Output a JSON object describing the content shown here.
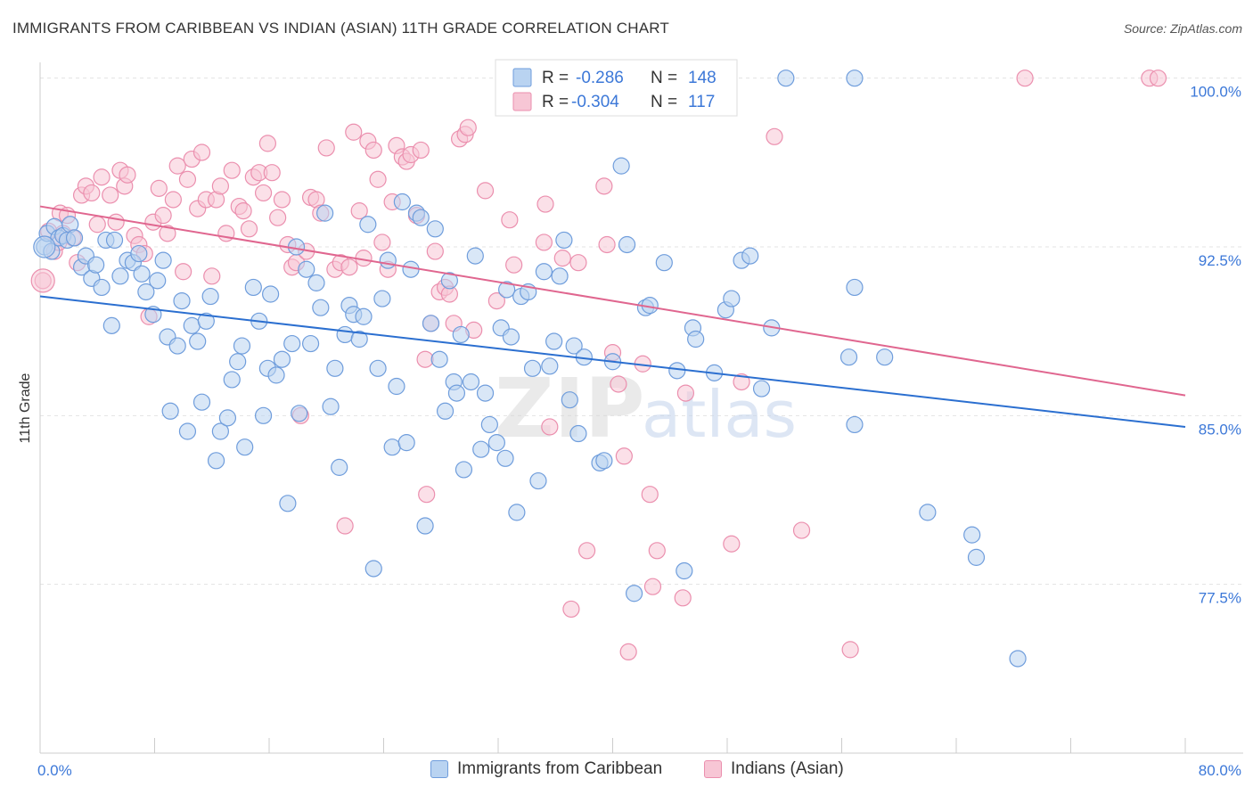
{
  "header": {
    "title": "IMMIGRANTS FROM CARIBBEAN VS INDIAN (ASIAN) 11TH GRADE CORRELATION CHART",
    "source": "Source: ZipAtlas.com"
  },
  "watermark": {
    "zip": "ZIP",
    "atlas": "atlas"
  },
  "colors": {
    "blue_fill": "#b9d3f1",
    "blue_stroke": "#6f9ddc",
    "blue_line": "#2b6fd0",
    "pink_fill": "#f7c6d5",
    "pink_stroke": "#eb8fae",
    "pink_line": "#e0668f",
    "axis_text": "#3c78d8",
    "grid": "#e3e3e3"
  },
  "stats_legend": [
    {
      "r_label": "R = ",
      "r_value": "-0.286",
      "n_label": "N = ",
      "n_value": "148"
    },
    {
      "r_label": "R = ",
      "r_value": "-0.304",
      "n_label": "N = ",
      "n_value": "117"
    }
  ],
  "chart_data": {
    "type": "scatter",
    "title": "IMMIGRANTS FROM CARIBBEAN VS INDIAN (ASIAN) 11TH GRADE CORRELATION CHART",
    "xlabel": "",
    "ylabel": "11th Grade",
    "xlim": [
      0,
      80
    ],
    "ylim": [
      70,
      100.7
    ],
    "x_tick_labels": [
      "0.0%",
      "80.0%"
    ],
    "y_ticks": [
      77.5,
      85.0,
      92.5,
      100.0
    ],
    "y_tick_labels": [
      "77.5%",
      "85.0%",
      "92.5%",
      "100.0%"
    ],
    "grid": true,
    "legend_position": "top-center",
    "series": [
      {
        "name": "Immigrants from Caribbean",
        "color": "#6f9ddc",
        "r": -0.286,
        "n": 148,
        "trend": {
          "x": [
            0,
            80
          ],
          "y": [
            90.3,
            84.5
          ]
        },
        "points": [
          [
            0.3,
            92.5
          ],
          [
            0.5,
            93.1
          ],
          [
            0.8,
            92.3
          ],
          [
            1.0,
            93.4
          ],
          [
            1.3,
            92.9
          ],
          [
            1.6,
            93.0
          ],
          [
            1.9,
            92.8
          ],
          [
            2.1,
            93.5
          ],
          [
            2.4,
            92.9
          ],
          [
            2.9,
            91.6
          ],
          [
            3.2,
            92.1
          ],
          [
            3.6,
            91.1
          ],
          [
            3.9,
            91.7
          ],
          [
            4.3,
            90.7
          ],
          [
            4.6,
            92.8
          ],
          [
            5.0,
            89.0
          ],
          [
            5.2,
            92.8
          ],
          [
            5.6,
            91.2
          ],
          [
            6.1,
            91.9
          ],
          [
            6.5,
            91.8
          ],
          [
            6.9,
            92.2
          ],
          [
            7.1,
            91.3
          ],
          [
            7.4,
            90.5
          ],
          [
            7.9,
            89.5
          ],
          [
            8.2,
            91.0
          ],
          [
            8.6,
            91.9
          ],
          [
            8.9,
            88.5
          ],
          [
            9.1,
            85.2
          ],
          [
            9.6,
            88.1
          ],
          [
            9.9,
            90.1
          ],
          [
            10.3,
            84.3
          ],
          [
            10.6,
            89.0
          ],
          [
            11.0,
            88.3
          ],
          [
            11.3,
            85.6
          ],
          [
            11.6,
            89.2
          ],
          [
            11.9,
            90.3
          ],
          [
            12.3,
            83.0
          ],
          [
            12.6,
            84.3
          ],
          [
            13.1,
            84.9
          ],
          [
            13.4,
            86.6
          ],
          [
            13.8,
            87.4
          ],
          [
            14.1,
            88.1
          ],
          [
            14.3,
            83.6
          ],
          [
            14.9,
            90.7
          ],
          [
            15.3,
            89.2
          ],
          [
            15.6,
            85.0
          ],
          [
            15.9,
            87.1
          ],
          [
            16.1,
            90.4
          ],
          [
            16.5,
            86.8
          ],
          [
            16.9,
            87.5
          ],
          [
            17.3,
            81.1
          ],
          [
            17.6,
            88.2
          ],
          [
            17.9,
            92.5
          ],
          [
            18.1,
            85.1
          ],
          [
            18.6,
            91.5
          ],
          [
            18.9,
            88.2
          ],
          [
            19.3,
            90.9
          ],
          [
            19.6,
            89.8
          ],
          [
            19.9,
            94.0
          ],
          [
            20.3,
            85.4
          ],
          [
            20.6,
            87.1
          ],
          [
            20.9,
            82.7
          ],
          [
            21.3,
            88.6
          ],
          [
            21.6,
            89.9
          ],
          [
            21.9,
            89.5
          ],
          [
            22.3,
            88.4
          ],
          [
            22.6,
            89.4
          ],
          [
            22.9,
            93.5
          ],
          [
            23.3,
            78.2
          ],
          [
            23.6,
            87.1
          ],
          [
            23.9,
            90.2
          ],
          [
            24.3,
            91.9
          ],
          [
            24.6,
            83.6
          ],
          [
            24.9,
            86.3
          ],
          [
            25.3,
            94.5
          ],
          [
            25.6,
            83.8
          ],
          [
            25.9,
            91.5
          ],
          [
            26.3,
            94.0
          ],
          [
            26.6,
            93.8
          ],
          [
            26.9,
            80.1
          ],
          [
            27.3,
            89.1
          ],
          [
            27.6,
            93.3
          ],
          [
            27.9,
            87.5
          ],
          [
            28.3,
            85.2
          ],
          [
            28.6,
            91.0
          ],
          [
            28.9,
            86.5
          ],
          [
            29.1,
            86.0
          ],
          [
            29.4,
            88.6
          ],
          [
            29.6,
            82.6
          ],
          [
            30.1,
            86.5
          ],
          [
            30.4,
            92.1
          ],
          [
            30.8,
            83.5
          ],
          [
            31.1,
            86.0
          ],
          [
            31.4,
            84.6
          ],
          [
            31.9,
            83.8
          ],
          [
            32.2,
            88.9
          ],
          [
            32.5,
            83.1
          ],
          [
            32.6,
            90.6
          ],
          [
            32.9,
            88.5
          ],
          [
            33.3,
            80.7
          ],
          [
            33.6,
            90.3
          ],
          [
            34.1,
            90.5
          ],
          [
            34.4,
            87.1
          ],
          [
            34.8,
            82.1
          ],
          [
            35.2,
            91.4
          ],
          [
            35.6,
            87.2
          ],
          [
            35.9,
            88.3
          ],
          [
            36.3,
            91.2
          ],
          [
            36.6,
            92.8
          ],
          [
            37.0,
            85.7
          ],
          [
            37.3,
            88.1
          ],
          [
            37.6,
            84.2
          ],
          [
            38.0,
            87.6
          ],
          [
            39.1,
            82.9
          ],
          [
            39.4,
            83.0
          ],
          [
            40.0,
            87.4
          ],
          [
            40.6,
            96.1
          ],
          [
            41.0,
            92.6
          ],
          [
            41.5,
            77.1
          ],
          [
            42.3,
            89.8
          ],
          [
            42.6,
            89.9
          ],
          [
            43.6,
            91.8
          ],
          [
            44.5,
            87.0
          ],
          [
            45.0,
            78.1
          ],
          [
            45.6,
            88.9
          ],
          [
            45.8,
            88.4
          ],
          [
            47.1,
            86.9
          ],
          [
            47.9,
            89.7
          ],
          [
            48.3,
            90.2
          ],
          [
            49.0,
            91.9
          ],
          [
            49.6,
            92.1
          ],
          [
            50.4,
            86.2
          ],
          [
            51.1,
            88.9
          ],
          [
            52.1,
            100.0
          ],
          [
            56.5,
            87.6
          ],
          [
            56.9,
            84.6
          ],
          [
            56.9,
            90.7
          ],
          [
            56.9,
            100.0
          ],
          [
            59.0,
            87.6
          ],
          [
            62.0,
            80.7
          ],
          [
            65.1,
            79.7
          ],
          [
            65.4,
            78.7
          ],
          [
            68.3,
            74.2
          ]
        ]
      },
      {
        "name": "Indians (Asian)",
        "color": "#eb8fae",
        "r": -0.304,
        "n": 117,
        "trend": {
          "x": [
            0,
            80
          ],
          "y": [
            94.3,
            85.9
          ]
        },
        "points": [
          [
            0.2,
            91.0
          ],
          [
            0.6,
            93.2
          ],
          [
            1.0,
            92.3
          ],
          [
            1.3,
            92.7
          ],
          [
            1.4,
            94.0
          ],
          [
            1.6,
            93.1
          ],
          [
            1.9,
            93.9
          ],
          [
            2.3,
            92.9
          ],
          [
            2.6,
            91.8
          ],
          [
            2.9,
            94.8
          ],
          [
            3.2,
            95.2
          ],
          [
            3.6,
            94.9
          ],
          [
            4.0,
            93.5
          ],
          [
            4.3,
            95.6
          ],
          [
            4.9,
            94.8
          ],
          [
            5.3,
            93.6
          ],
          [
            5.6,
            95.9
          ],
          [
            5.9,
            95.2
          ],
          [
            6.1,
            95.7
          ],
          [
            6.6,
            93.0
          ],
          [
            6.9,
            92.6
          ],
          [
            7.3,
            92.2
          ],
          [
            7.6,
            89.4
          ],
          [
            7.9,
            93.6
          ],
          [
            8.3,
            95.1
          ],
          [
            8.6,
            93.9
          ],
          [
            8.9,
            93.1
          ],
          [
            9.3,
            94.6
          ],
          [
            9.6,
            96.1
          ],
          [
            10.0,
            91.4
          ],
          [
            10.3,
            95.5
          ],
          [
            10.6,
            96.4
          ],
          [
            11.0,
            94.2
          ],
          [
            11.3,
            96.7
          ],
          [
            11.6,
            94.6
          ],
          [
            12.0,
            91.2
          ],
          [
            12.3,
            94.6
          ],
          [
            12.6,
            95.2
          ],
          [
            13.0,
            93.1
          ],
          [
            13.4,
            95.9
          ],
          [
            13.9,
            94.3
          ],
          [
            14.2,
            94.1
          ],
          [
            14.6,
            93.3
          ],
          [
            14.9,
            95.6
          ],
          [
            15.3,
            95.8
          ],
          [
            15.6,
            94.9
          ],
          [
            15.9,
            97.1
          ],
          [
            16.2,
            95.8
          ],
          [
            16.6,
            93.8
          ],
          [
            16.9,
            94.6
          ],
          [
            17.3,
            92.6
          ],
          [
            17.6,
            91.6
          ],
          [
            17.9,
            91.8
          ],
          [
            18.2,
            85.0
          ],
          [
            18.6,
            92.3
          ],
          [
            18.9,
            94.7
          ],
          [
            19.3,
            94.6
          ],
          [
            19.6,
            94.0
          ],
          [
            20.0,
            96.9
          ],
          [
            20.6,
            91.5
          ],
          [
            21.0,
            91.8
          ],
          [
            21.3,
            80.1
          ],
          [
            21.6,
            91.6
          ],
          [
            21.9,
            97.6
          ],
          [
            22.3,
            94.1
          ],
          [
            22.6,
            92.0
          ],
          [
            22.9,
            97.2
          ],
          [
            23.3,
            96.8
          ],
          [
            23.6,
            95.5
          ],
          [
            23.9,
            92.7
          ],
          [
            24.3,
            91.5
          ],
          [
            24.6,
            94.5
          ],
          [
            24.9,
            97.0
          ],
          [
            25.3,
            96.5
          ],
          [
            25.6,
            96.3
          ],
          [
            25.9,
            96.6
          ],
          [
            26.3,
            93.9
          ],
          [
            26.6,
            96.8
          ],
          [
            26.9,
            87.5
          ],
          [
            27.0,
            81.5
          ],
          [
            27.3,
            89.1
          ],
          [
            27.6,
            92.3
          ],
          [
            27.9,
            90.5
          ],
          [
            28.3,
            90.7
          ],
          [
            28.6,
            90.4
          ],
          [
            28.9,
            89.1
          ],
          [
            29.3,
            97.3
          ],
          [
            29.7,
            97.5
          ],
          [
            29.9,
            97.8
          ],
          [
            30.3,
            88.8
          ],
          [
            31.1,
            95.0
          ],
          [
            31.9,
            90.1
          ],
          [
            32.8,
            93.7
          ],
          [
            33.1,
            91.7
          ],
          [
            35.2,
            92.7
          ],
          [
            35.3,
            94.4
          ],
          [
            35.6,
            84.5
          ],
          [
            36.5,
            92.0
          ],
          [
            37.1,
            76.4
          ],
          [
            37.6,
            91.8
          ],
          [
            38.2,
            79.0
          ],
          [
            39.4,
            95.2
          ],
          [
            39.6,
            92.6
          ],
          [
            40.0,
            87.8
          ],
          [
            40.4,
            86.4
          ],
          [
            40.8,
            83.2
          ],
          [
            41.1,
            74.5
          ],
          [
            42.1,
            87.3
          ],
          [
            42.6,
            81.5
          ],
          [
            42.8,
            77.4
          ],
          [
            43.1,
            79.0
          ],
          [
            44.9,
            76.9
          ],
          [
            45.1,
            86.0
          ],
          [
            48.3,
            79.3
          ],
          [
            49.0,
            86.5
          ],
          [
            51.3,
            97.4
          ],
          [
            53.2,
            79.9
          ],
          [
            56.6,
            74.6
          ],
          [
            68.8,
            100.0
          ],
          [
            77.5,
            100.0
          ],
          [
            78.1,
            100.0
          ]
        ]
      }
    ]
  },
  "bottom_legend": [
    {
      "label": "Immigrants from Caribbean"
    },
    {
      "label": "Indians (Asian)"
    }
  ]
}
